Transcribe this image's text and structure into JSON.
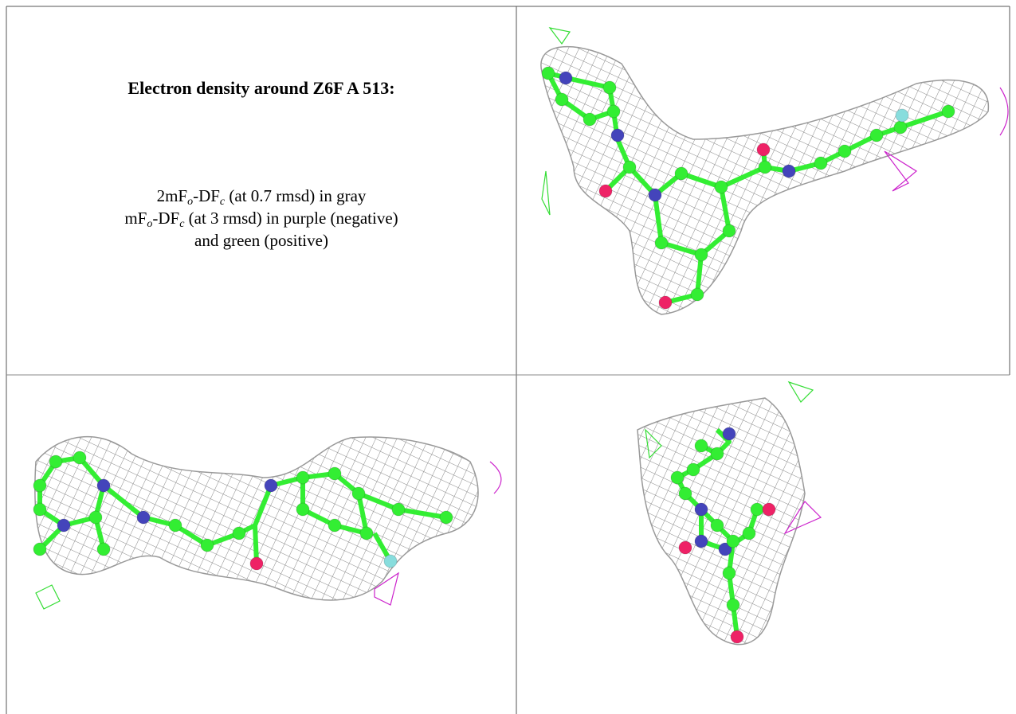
{
  "title": "Electron density around Z6F A 513:",
  "caption": {
    "line1": [
      "2mF",
      "o",
      "-DF",
      "c",
      " (at 0.7 rmsd) in gray"
    ],
    "line2": [
      "mF",
      "o",
      "-DF",
      "c",
      " (at 3 rmsd) in purple (negative)"
    ],
    "line3": "and green (positive)"
  }
}
